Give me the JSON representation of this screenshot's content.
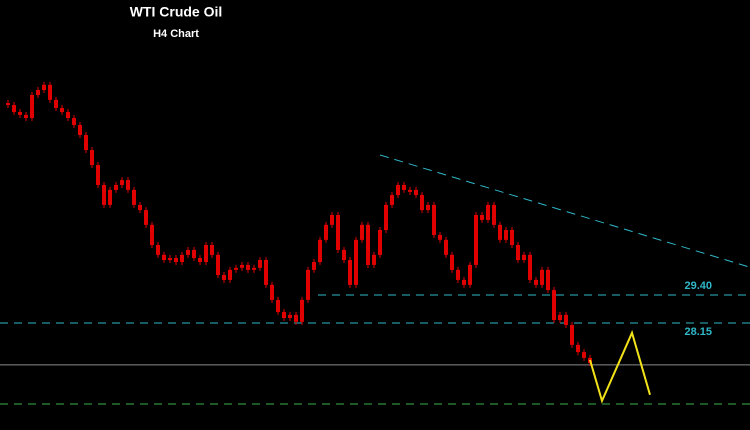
{
  "chart_data": {
    "type": "candlestick",
    "title": "WTI Crude Oil",
    "subtitle": "H4 Chart",
    "ylim": [
      23.37,
      42.57
    ],
    "color": "#e00000",
    "values": [
      37.97,
      37.88,
      37.57,
      37.44,
      37.3,
      38.33,
      38.55,
      38.78,
      38.11,
      37.75,
      37.57,
      37.3,
      36.99,
      36.54,
      35.87,
      35.2,
      34.31,
      33.42,
      34.09,
      34.31,
      34.53,
      34.09,
      33.42,
      33.19,
      32.53,
      31.63,
      31.19,
      30.96,
      31.05,
      30.87,
      31.19,
      31.41,
      31.05,
      30.87,
      31.63,
      31.19,
      30.29,
      30.07,
      30.52,
      30.61,
      30.74,
      30.52,
      30.61,
      30.96,
      29.85,
      29.18,
      28.64,
      28.37,
      28.51,
      28.2,
      29.18,
      30.52,
      30.87,
      31.86,
      32.53,
      32.97,
      31.41,
      30.96,
      29.85,
      31.86,
      32.53,
      30.74,
      31.19,
      32.3,
      33.42,
      33.86,
      34.31,
      34.09,
      34.09,
      33.86,
      33.19,
      33.42,
      32.08,
      31.86,
      31.19,
      30.52,
      30.07,
      29.85,
      30.74,
      32.97,
      32.75,
      33.42,
      32.53,
      31.86,
      32.3,
      31.63,
      30.96,
      31.19,
      30.07,
      29.85,
      30.52,
      29.62,
      28.28,
      28.51,
      28.06,
      27.17,
      26.85,
      26.59,
      26.36
    ],
    "levels": [
      {
        "value": 29.4,
        "label": "29.40"
      },
      {
        "value": 28.15,
        "label": "28.15"
      }
    ],
    "level_color": "#2fb8c8",
    "support_lines": [
      {
        "value": 26.28,
        "color": "#8a8a8a"
      },
      {
        "value": 24.53,
        "color": "#3ab04a"
      }
    ],
    "trendline": {
      "x": [
        63,
        125
      ],
      "values": [
        35.65,
        30.61
      ],
      "color": "#2fb8c8"
    },
    "projection": {
      "x": [
        98,
        100,
        105,
        108
      ],
      "values": [
        26.5,
        24.67,
        27.71,
        24.94
      ],
      "color": "#f2e21a"
    }
  }
}
